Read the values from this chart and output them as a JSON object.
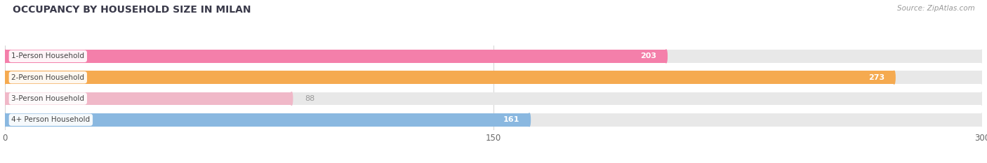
{
  "title": "OCCUPANCY BY HOUSEHOLD SIZE IN MILAN",
  "source": "Source: ZipAtlas.com",
  "categories": [
    "1-Person Household",
    "2-Person Household",
    "3-Person Household",
    "4+ Person Household"
  ],
  "values": [
    203,
    273,
    88,
    161
  ],
  "bar_colors": [
    "#f47faa",
    "#f5aa50",
    "#f0b8c8",
    "#8ab8e0"
  ],
  "bg_track_color": "#e8e8e8",
  "xlim": [
    0,
    300
  ],
  "xticks": [
    0,
    150,
    300
  ],
  "title_color": "#3a3a4a",
  "label_color": "#666666",
  "value_color_inside": "#ffffff",
  "value_color_outside": "#999999",
  "source_color": "#999999",
  "background_color": "#ffffff",
  "value_threshold": 120
}
